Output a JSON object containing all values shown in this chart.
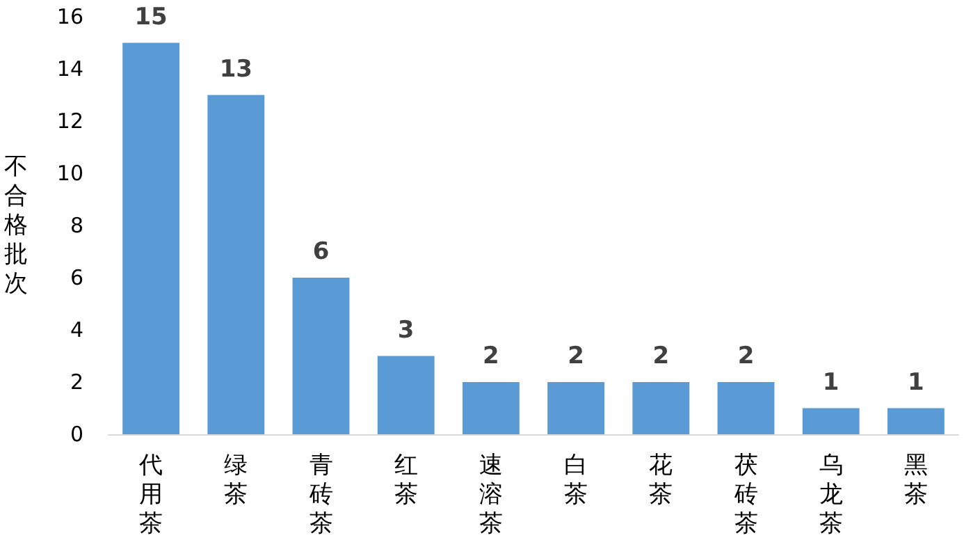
{
  "chart_data": {
    "type": "bar",
    "ylabel": "不合格批次",
    "categories": [
      "代用茶",
      "绿茶",
      "青砖茶",
      "红茶",
      "速溶茶",
      "白茶",
      "花茶",
      "茯砖茶",
      "乌龙茶",
      "黑茶"
    ],
    "values": [
      15,
      13,
      6,
      3,
      2,
      2,
      2,
      2,
      1,
      1
    ],
    "color": "#5b9bd5",
    "data_labels": true,
    "ylim": [
      0,
      16
    ],
    "yticks": [
      0,
      2,
      4,
      6,
      8,
      10,
      12,
      14,
      16
    ],
    "grid": false
  }
}
